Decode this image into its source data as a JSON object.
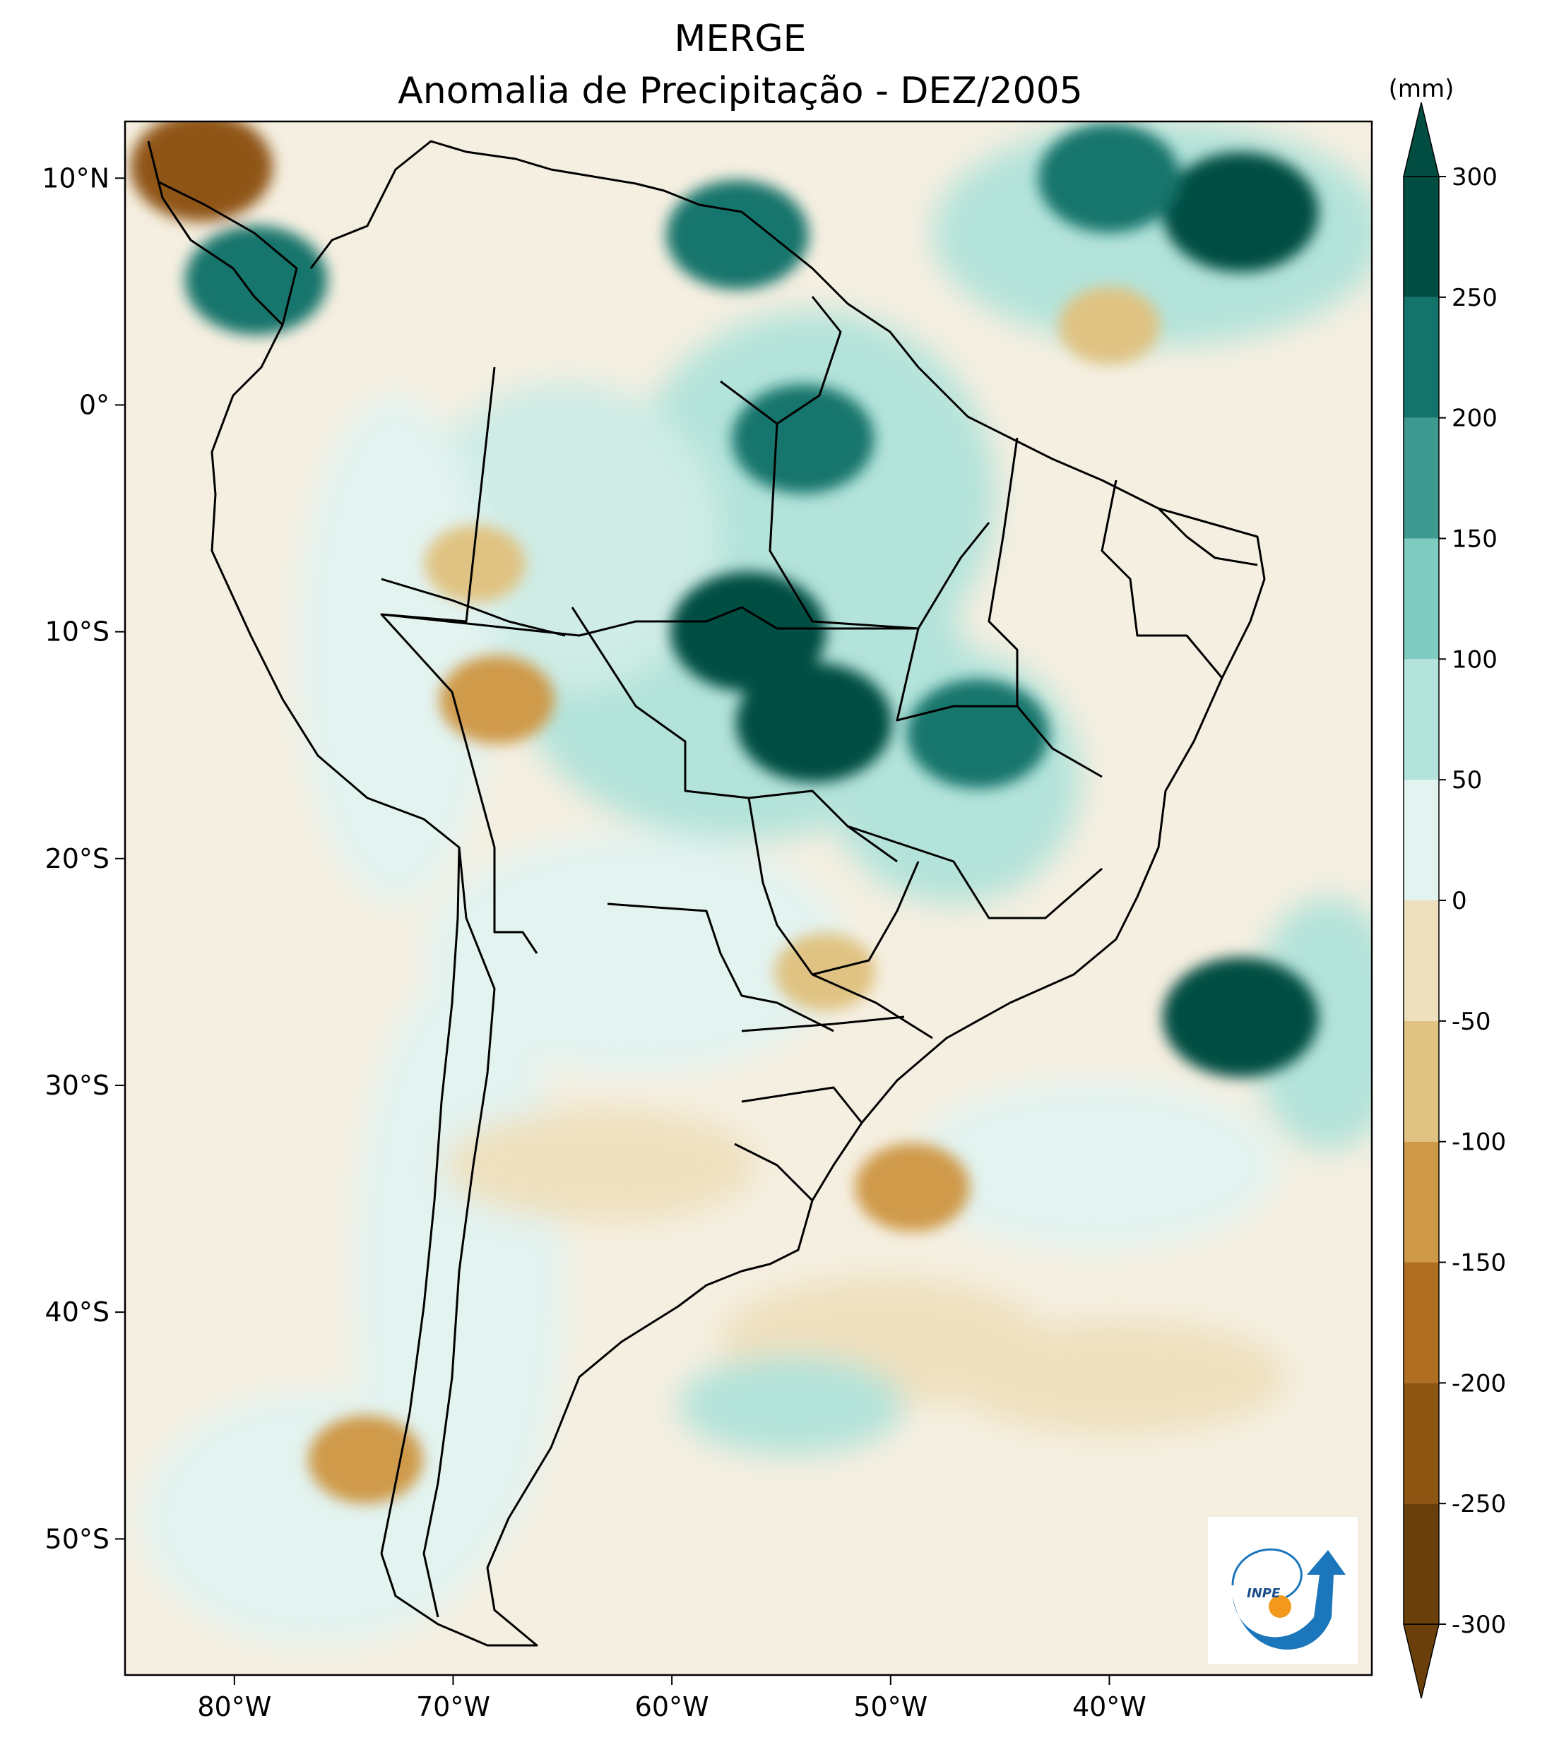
{
  "title": {
    "line1": "MERGE",
    "line2": "Anomalia de Precipitação - DEZ/2005"
  },
  "axes": {
    "lon_ticks": [
      "80°W",
      "70°W",
      "60°W",
      "50°W",
      "40°W"
    ],
    "lat_ticks": [
      "10°N",
      "0°",
      "10°S",
      "20°S",
      "30°S",
      "40°S",
      "50°S"
    ]
  },
  "colorbar": {
    "unit": "(mm)",
    "levels": [
      -300,
      -250,
      -200,
      -150,
      -100,
      -50,
      0,
      50,
      100,
      150,
      200,
      250,
      300
    ],
    "labels": [
      "-300",
      "-250",
      "-200",
      "-150",
      "-100",
      "-50",
      "0",
      "50",
      "100",
      "150",
      "200",
      "250",
      "300"
    ],
    "colors": [
      "#6b3f0a",
      "#8f5512",
      "#b06e20",
      "#cf9a48",
      "#e0c382",
      "#efe0bd",
      "#f6efe0",
      "#e2f3f0",
      "#b3e3da",
      "#7fcbbf",
      "#3e9a90",
      "#13746c",
      "#024d42"
    ]
  },
  "logo": {
    "text": "INPE"
  },
  "chart_data": {
    "type": "heatmap",
    "title": "MERGE Anomalia de Precipitação - DEZ/2005",
    "units": "mm",
    "xlim": [
      -85,
      -28
    ],
    "ylim": [
      -56,
      12.5
    ],
    "xticks": [
      -80,
      -70,
      -60,
      -50,
      -40
    ],
    "yticks": [
      10,
      0,
      -10,
      -20,
      -30,
      -40,
      -50
    ],
    "levels": [
      -300,
      -250,
      -200,
      -150,
      -100,
      -50,
      0,
      50,
      100,
      150,
      200,
      250,
      300
    ],
    "features": [
      {
        "lon": -81.5,
        "lat": 10.5,
        "value": -250
      },
      {
        "lon": -79,
        "lat": 5.5,
        "value": 250
      },
      {
        "lon": -57,
        "lat": 7.5,
        "value": 250
      },
      {
        "lon": -34,
        "lat": 8.5,
        "value": 300
      },
      {
        "lon": -40,
        "lat": 10,
        "value": 250
      },
      {
        "lon": -54,
        "lat": -1.5,
        "value": 250
      },
      {
        "lon": -56.5,
        "lat": -10,
        "value": 300
      },
      {
        "lon": -53.5,
        "lat": -14,
        "value": 300
      },
      {
        "lon": -46,
        "lat": -14.5,
        "value": 250
      },
      {
        "lon": -68,
        "lat": -13,
        "value": -150
      },
      {
        "lon": -69,
        "lat": -7,
        "value": -100
      },
      {
        "lon": -53,
        "lat": -25,
        "value": -100
      },
      {
        "lon": -49,
        "lat": -34.5,
        "value": -150
      },
      {
        "lon": -34,
        "lat": -27,
        "value": 300
      },
      {
        "lon": -40,
        "lat": 3.5,
        "value": -100
      },
      {
        "lon": -74,
        "lat": -46.5,
        "value": -150
      }
    ]
  }
}
